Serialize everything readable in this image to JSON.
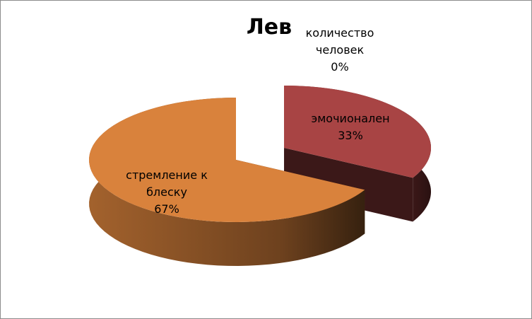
{
  "chart_data": {
    "type": "pie3d",
    "title": "Лев",
    "categories": [
      "количество человек",
      "эмочионален",
      "стремление к блеску"
    ],
    "values": [
      0,
      33,
      67
    ],
    "value_labels": [
      "0%",
      "33%",
      "67%"
    ],
    "colors": [
      "#4f81bd",
      "#a84444",
      "#d9823c"
    ]
  }
}
